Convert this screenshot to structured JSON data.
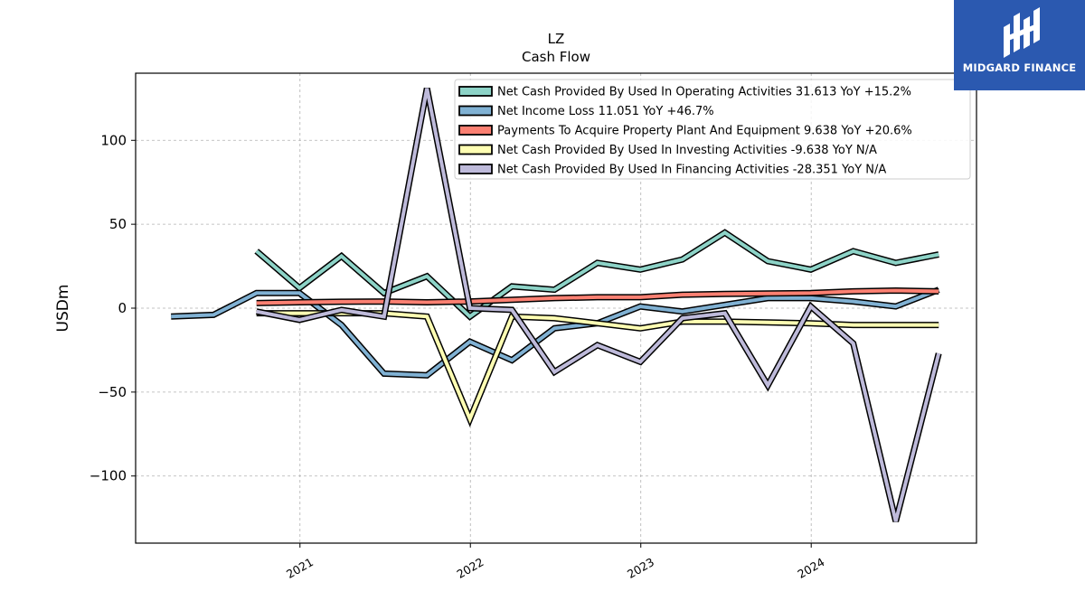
{
  "brand": {
    "name": "MIDGARD FINANCE",
    "color": "#2b59b0"
  },
  "chart_data": {
    "type": "line",
    "title": "LZ",
    "subtitle": "Cash Flow",
    "xlabel": "",
    "ylabel": "USDm",
    "x_ticks": [
      "2021",
      "2022",
      "2023",
      "2024"
    ],
    "y_ticks": [
      "100",
      "50",
      "0",
      "−50",
      "−100"
    ],
    "ylim": [
      -140,
      140
    ],
    "xlim": [
      "2020-01-15",
      "2024-12-20"
    ],
    "grid": true,
    "legend_position": "top-right",
    "series": [
      {
        "name": "Net Cash Provided By Used In Operating Activities",
        "legend": "Net Cash Provided By Used In Operating Activities  31.613 YoY +15.2%",
        "color": "#8dd3c7",
        "x": [
          "2020-09-30",
          "2020-12-31",
          "2021-03-31",
          "2021-06-30",
          "2021-09-30",
          "2021-12-31",
          "2022-03-31",
          "2022-06-30",
          "2022-09-30",
          "2022-12-31",
          "2023-03-31",
          "2023-06-30",
          "2023-09-30",
          "2023-12-31",
          "2024-03-31",
          "2024-06-30",
          "2024-09-30"
        ],
        "y": [
          34,
          12,
          31,
          9,
          19,
          -5,
          13,
          11,
          27,
          23,
          29,
          45,
          28,
          23,
          34,
          27,
          32
        ]
      },
      {
        "name": "Net Income Loss",
        "legend": "Net Income Loss  11.051 YoY +46.7%",
        "color": "#80b1d3",
        "x": [
          "2020-03-31",
          "2020-06-30",
          "2020-09-30",
          "2020-12-31",
          "2021-03-31",
          "2021-06-30",
          "2021-09-30",
          "2021-12-31",
          "2022-03-31",
          "2022-06-30",
          "2022-09-30",
          "2022-12-31",
          "2023-03-31",
          "2023-06-30",
          "2023-09-30",
          "2023-12-31",
          "2024-03-31",
          "2024-06-30",
          "2024-09-30"
        ],
        "y": [
          -5,
          -4,
          9,
          9,
          -10,
          -39,
          -40,
          -20,
          -31,
          -12,
          -9,
          1,
          -2,
          2,
          6,
          6,
          4,
          1,
          11
        ]
      },
      {
        "name": "Payments To Acquire Property Plant And Equipment",
        "legend": "Payments To Acquire Property Plant And Equipment  9.638 YoY +20.6%",
        "color": "#fb8072",
        "x": [
          "2020-09-30",
          "2020-12-31",
          "2021-03-31",
          "2021-06-30",
          "2021-09-30",
          "2021-12-31",
          "2022-03-31",
          "2022-06-30",
          "2022-09-30",
          "2022-12-31",
          "2023-03-31",
          "2023-06-30",
          "2023-09-30",
          "2023-12-31",
          "2024-03-31",
          "2024-06-30",
          "2024-09-30"
        ],
        "y": [
          3,
          3.5,
          3.8,
          4,
          3.5,
          4,
          5,
          6,
          6.5,
          6.5,
          8,
          8.5,
          8.8,
          9,
          10,
          10.5,
          10
        ]
      },
      {
        "name": "Net Cash Provided By Used In Investing Activities",
        "legend": "Net Cash Provided By Used In Investing Activities  -9.638 YoY N/A",
        "color": "#ffffb3",
        "x": [
          "2020-09-30",
          "2020-12-31",
          "2021-03-31",
          "2021-06-30",
          "2021-09-30",
          "2021-12-31",
          "2022-03-31",
          "2022-06-30",
          "2022-09-30",
          "2022-12-31",
          "2023-03-31",
          "2023-06-30",
          "2023-09-30",
          "2023-12-31",
          "2024-03-31",
          "2024-06-30",
          "2024-09-30"
        ],
        "y": [
          -3,
          -3,
          -3,
          -3,
          -5,
          -66,
          -5,
          -6,
          -9,
          -12,
          -8,
          -8,
          -8.5,
          -9,
          -10,
          -10,
          -10
        ]
      },
      {
        "name": "Net Cash Provided By Used In Financing Activities",
        "legend": "Net Cash Provided By Used In Financing Activities  -28.351 YoY N/A",
        "color": "#bebada",
        "x": [
          "2020-09-30",
          "2020-12-31",
          "2021-03-31",
          "2021-06-30",
          "2021-09-30",
          "2021-12-31",
          "2022-03-31",
          "2022-06-30",
          "2022-09-30",
          "2022-12-31",
          "2023-03-31",
          "2023-06-30",
          "2023-09-30",
          "2023-12-31",
          "2024-03-31",
          "2024-06-30",
          "2024-09-30"
        ],
        "y": [
          -2,
          -7,
          -1,
          -5,
          131,
          0,
          -1,
          -38,
          -22,
          -32,
          -6,
          -3,
          -46,
          1,
          -21,
          -127,
          -27
        ]
      }
    ]
  }
}
